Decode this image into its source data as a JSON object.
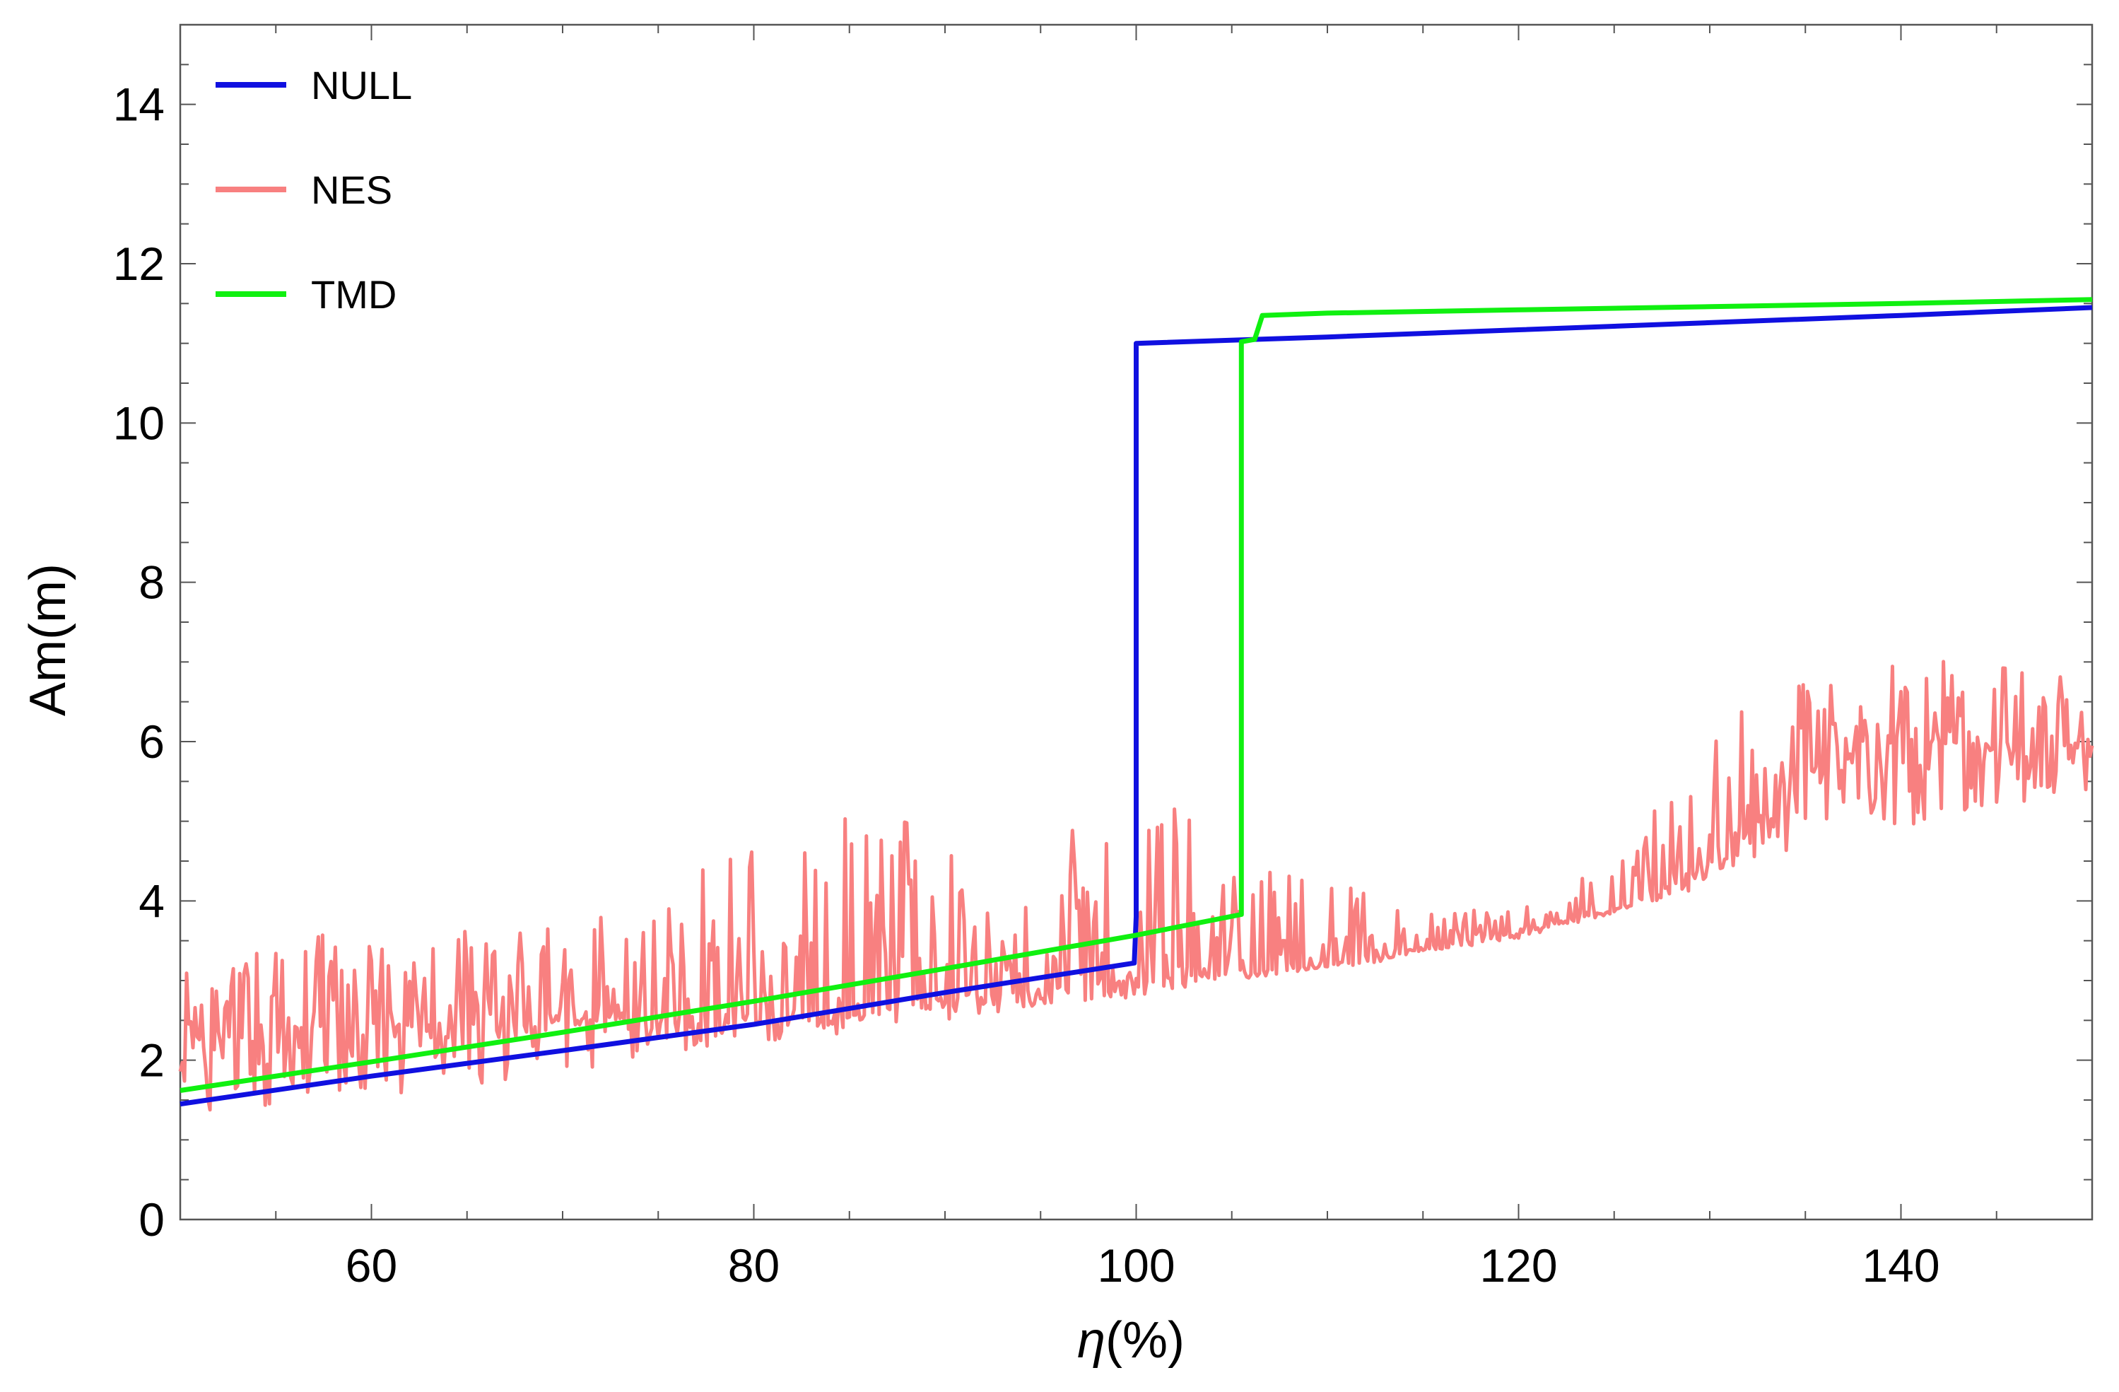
{
  "chart_data": {
    "type": "line",
    "title": "",
    "xlabel_var": "η",
    "xlabel_unit": "(%)",
    "ylabel": "Am(m)",
    "xlim": [
      50,
      150
    ],
    "ylim": [
      0,
      15
    ],
    "x_ticks": [
      60,
      80,
      100,
      120,
      140
    ],
    "y_ticks": [
      0,
      2,
      4,
      6,
      8,
      10,
      12,
      14
    ],
    "legend_position": "top-left",
    "grid": false,
    "series": [
      {
        "name": "NULL",
        "color": "#1010e0",
        "style": "solid",
        "points": [
          [
            50,
            1.45
          ],
          [
            60,
            1.8
          ],
          [
            70,
            2.12
          ],
          [
            80,
            2.45
          ],
          [
            90,
            2.85
          ],
          [
            99.9,
            3.22
          ],
          [
            100,
            3.8
          ],
          [
            100,
            11.0
          ],
          [
            110,
            11.08
          ],
          [
            120,
            11.17
          ],
          [
            130,
            11.26
          ],
          [
            140,
            11.35
          ],
          [
            150,
            11.45
          ]
        ]
      },
      {
        "name": "NES",
        "color": "#f88080",
        "style": "noisy",
        "trend": [
          [
            50,
            2.2
          ],
          [
            60,
            2.4
          ],
          [
            70,
            2.5
          ],
          [
            80,
            2.6
          ],
          [
            90,
            2.8
          ],
          [
            100,
            3.0
          ],
          [
            105,
            3.1
          ],
          [
            110,
            3.2
          ],
          [
            115,
            3.4
          ],
          [
            120,
            3.6
          ],
          [
            125,
            3.9
          ],
          [
            128,
            4.2
          ],
          [
            131,
            4.6
          ],
          [
            134,
            5.5
          ],
          [
            138,
            5.9
          ],
          [
            142,
            6.0
          ],
          [
            146,
            6.0
          ],
          [
            150,
            5.9
          ]
        ],
        "max": [
          [
            50,
            3.1
          ],
          [
            57.5,
            3.6
          ],
          [
            70,
            3.7
          ],
          [
            82.5,
            5.1
          ],
          [
            100,
            4.9
          ],
          [
            102.5,
            5.3
          ],
          [
            108.5,
            5.3
          ],
          [
            120,
            4.4
          ],
          [
            128,
            6.5
          ],
          [
            132,
            7.1
          ],
          [
            143,
            7.6
          ],
          [
            150,
            7.3
          ]
        ],
        "min": [
          [
            50,
            1.3
          ],
          [
            60,
            1.5
          ],
          [
            80,
            2.2
          ],
          [
            100,
            2.8
          ],
          [
            110,
            3.1
          ],
          [
            120,
            3.4
          ],
          [
            130,
            4.1
          ],
          [
            145,
            4.7
          ],
          [
            150,
            5.2
          ]
        ]
      },
      {
        "name": "TMD",
        "color": "#10f010",
        "style": "solid",
        "points": [
          [
            50,
            1.62
          ],
          [
            60,
            1.98
          ],
          [
            70,
            2.35
          ],
          [
            80,
            2.74
          ],
          [
            90,
            3.15
          ],
          [
            100,
            3.57
          ],
          [
            105.5,
            3.83
          ],
          [
            105.5,
            11.02
          ],
          [
            106.2,
            11.05
          ],
          [
            106.6,
            11.35
          ],
          [
            110,
            11.38
          ],
          [
            120,
            11.42
          ],
          [
            130,
            11.46
          ],
          [
            140,
            11.5
          ],
          [
            150,
            11.55
          ]
        ]
      }
    ]
  }
}
